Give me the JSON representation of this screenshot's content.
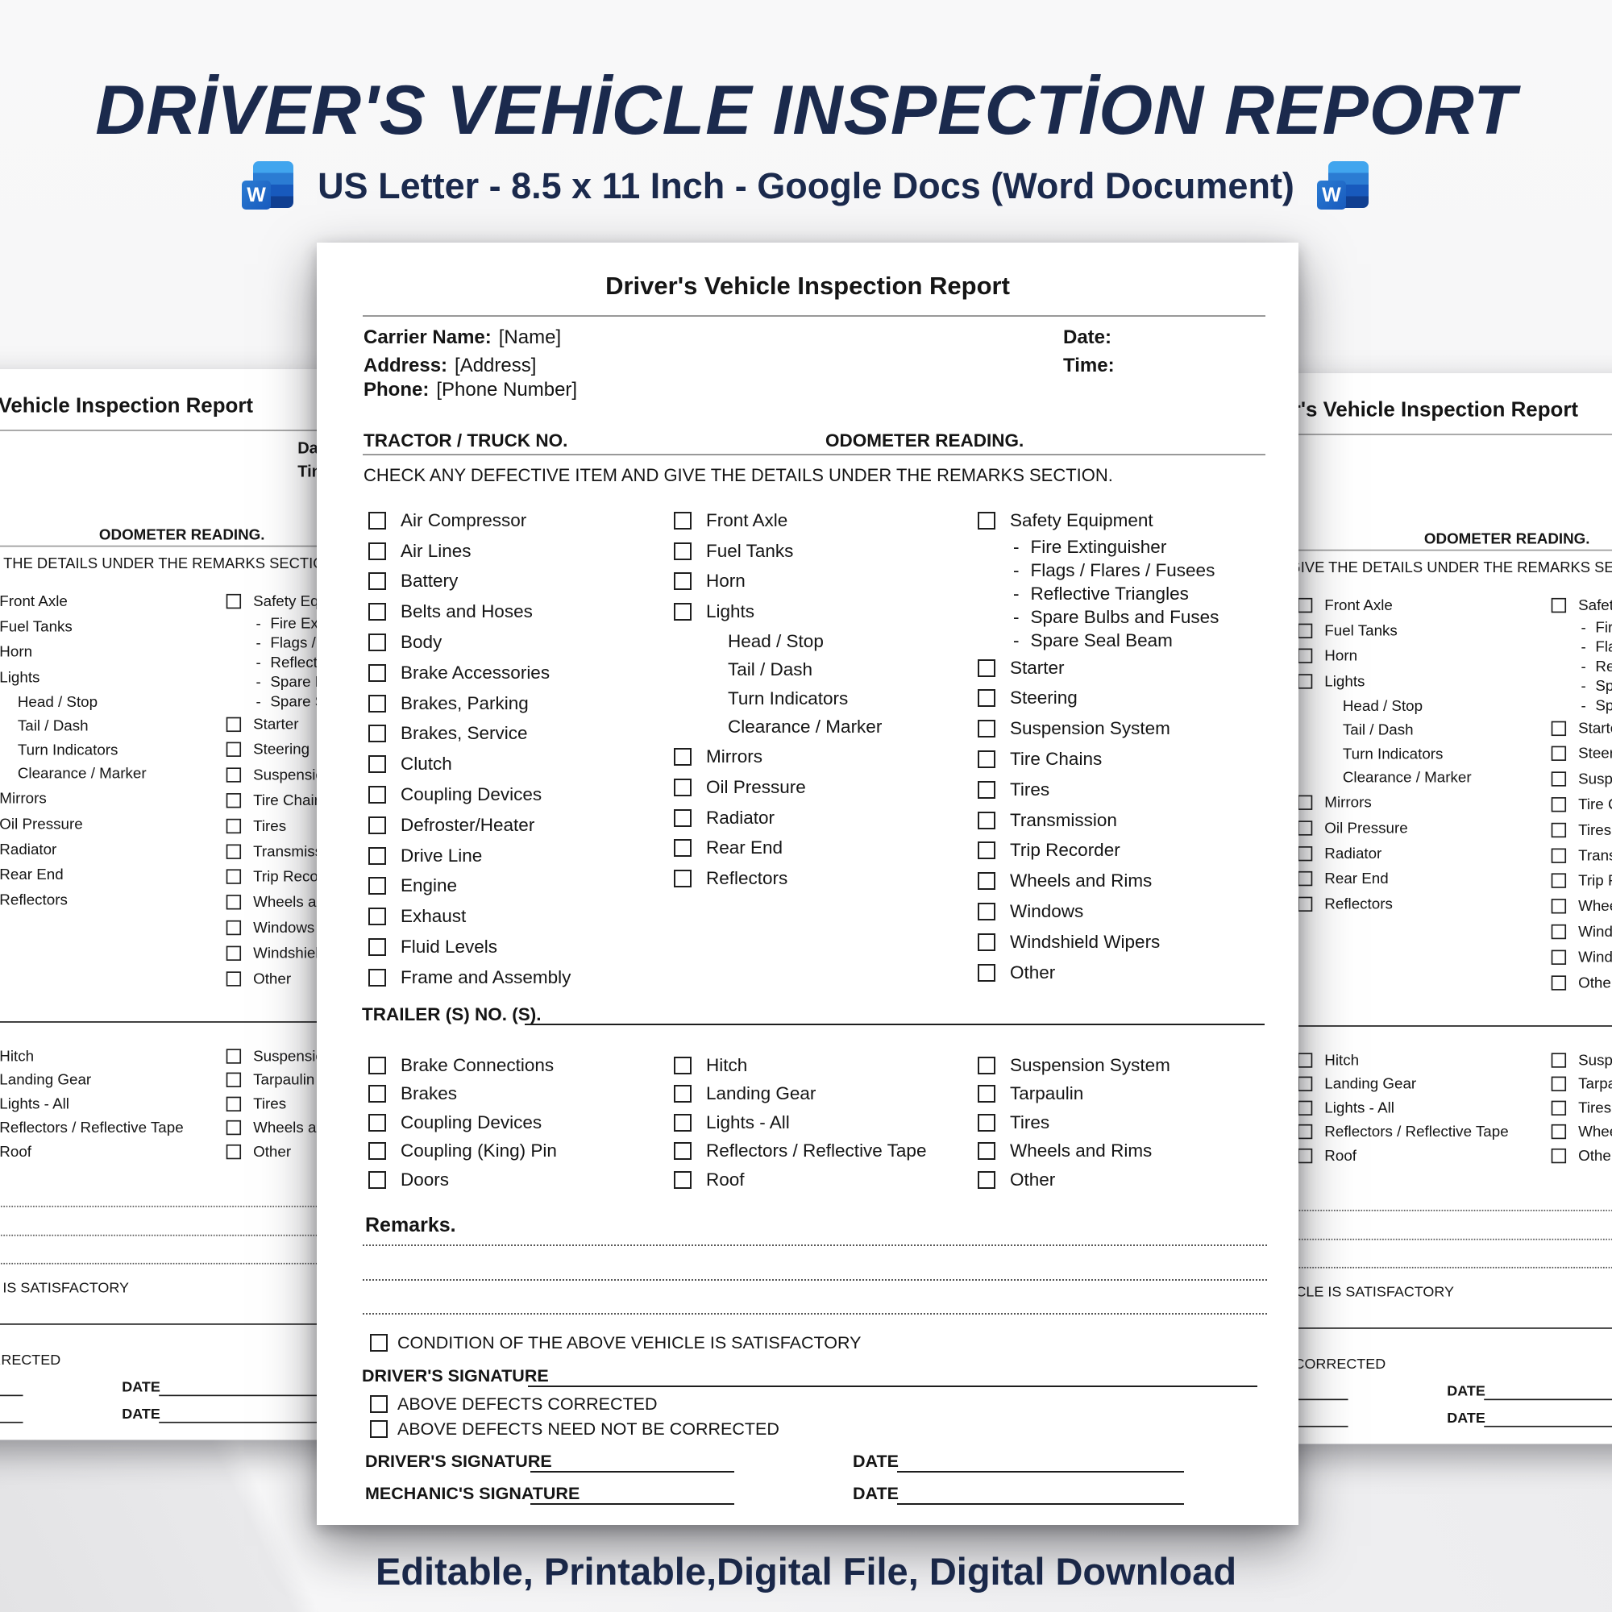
{
  "page": {
    "title": "DRİVER'S VEHİCLE INSPECTİON REPORT",
    "subtitle": "US Letter - 8.5 x 11 Inch - Google Docs (Word Document)",
    "footer_tagline": "Editable, Printable,Digital File, Digital Download",
    "accent_color": "#1b2a4d",
    "word_icon_letter": "W"
  },
  "form": {
    "title": "Driver's Vehicle Inspection Report",
    "carrier_fields": [
      {
        "label": "Carrier Name:",
        "value": "[Name]"
      },
      {
        "label": "Address:",
        "value": "[Address]"
      },
      {
        "label": "Phone:",
        "value": "[Phone Number]"
      }
    ],
    "datetime_fields": [
      {
        "label": "Date:"
      },
      {
        "label": "Time:"
      }
    ],
    "tractor_section_label": "TRACTOR / TRUCK NO.",
    "odometer_label": "ODOMETER READING.",
    "instruction": "CHECK ANY DEFECTIVE ITEM AND GIVE THE DETAILS UNDER THE REMARKS SECTION.",
    "dash_bullet": "-",
    "tractor_columns": [
      [
        {
          "type": "checkbox",
          "label": "Air Compressor"
        },
        {
          "type": "checkbox",
          "label": "Air Lines"
        },
        {
          "type": "checkbox",
          "label": "Battery"
        },
        {
          "type": "checkbox",
          "label": "Belts and Hoses"
        },
        {
          "type": "checkbox",
          "label": "Body"
        },
        {
          "type": "checkbox",
          "label": "Brake Accessories"
        },
        {
          "type": "checkbox",
          "label": "Brakes, Parking"
        },
        {
          "type": "checkbox",
          "label": "Brakes, Service"
        },
        {
          "type": "checkbox",
          "label": "Clutch"
        },
        {
          "type": "checkbox",
          "label": "Coupling Devices"
        },
        {
          "type": "checkbox",
          "label": "Defroster/Heater"
        },
        {
          "type": "checkbox",
          "label": "Drive Line"
        },
        {
          "type": "checkbox",
          "label": "Engine"
        },
        {
          "type": "checkbox",
          "label": "Exhaust"
        },
        {
          "type": "checkbox",
          "label": "Fluid Levels"
        },
        {
          "type": "checkbox",
          "label": "Frame and Assembly"
        }
      ],
      [
        {
          "type": "checkbox",
          "label": "Front Axle"
        },
        {
          "type": "checkbox",
          "label": "Fuel Tanks"
        },
        {
          "type": "checkbox",
          "label": "Horn"
        },
        {
          "type": "checkbox",
          "label": "Lights"
        },
        {
          "type": "sub",
          "label": "Head / Stop"
        },
        {
          "type": "sub",
          "label": "Tail / Dash"
        },
        {
          "type": "sub",
          "label": "Turn Indicators"
        },
        {
          "type": "sub",
          "label": "Clearance / Marker"
        },
        {
          "type": "checkbox",
          "label": "Mirrors"
        },
        {
          "type": "checkbox",
          "label": "Oil Pressure"
        },
        {
          "type": "checkbox",
          "label": "Radiator"
        },
        {
          "type": "checkbox",
          "label": "Rear End"
        },
        {
          "type": "checkbox",
          "label": "Reflectors"
        }
      ],
      [
        {
          "type": "checkbox",
          "label": "Safety Equipment"
        },
        {
          "type": "dash",
          "label": "Fire Extinguisher"
        },
        {
          "type": "dash",
          "label": "Flags / Flares / Fusees"
        },
        {
          "type": "dash",
          "label": "Reflective Triangles"
        },
        {
          "type": "dash",
          "label": "Spare Bulbs and Fuses"
        },
        {
          "type": "dash",
          "label": "Spare Seal Beam"
        },
        {
          "type": "checkbox",
          "label": "Starter"
        },
        {
          "type": "checkbox",
          "label": "Steering"
        },
        {
          "type": "checkbox",
          "label": "Suspension System"
        },
        {
          "type": "checkbox",
          "label": "Tire Chains"
        },
        {
          "type": "checkbox",
          "label": "Tires"
        },
        {
          "type": "checkbox",
          "label": "Transmission"
        },
        {
          "type": "checkbox",
          "label": "Trip Recorder"
        },
        {
          "type": "checkbox",
          "label": "Wheels and Rims"
        },
        {
          "type": "checkbox",
          "label": "Windows"
        },
        {
          "type": "checkbox",
          "label": "Windshield Wipers"
        },
        {
          "type": "checkbox",
          "label": "Other"
        }
      ]
    ],
    "trailer_section_label": "TRAILER (S) NO. (S).",
    "trailer_columns": [
      [
        {
          "type": "checkbox",
          "label": "Brake Connections"
        },
        {
          "type": "checkbox",
          "label": "Brakes"
        },
        {
          "type": "checkbox",
          "label": "Coupling Devices"
        },
        {
          "type": "checkbox",
          "label": "Coupling (King) Pin"
        },
        {
          "type": "checkbox",
          "label": "Doors"
        }
      ],
      [
        {
          "type": "checkbox",
          "label": "Hitch"
        },
        {
          "type": "checkbox",
          "label": "Landing Gear"
        },
        {
          "type": "checkbox",
          "label": "Lights - All"
        },
        {
          "type": "checkbox",
          "label": "Reflectors / Reflective Tape"
        },
        {
          "type": "checkbox",
          "label": "Roof"
        }
      ],
      [
        {
          "type": "checkbox",
          "label": "Suspension System"
        },
        {
          "type": "checkbox",
          "label": "Tarpaulin"
        },
        {
          "type": "checkbox",
          "label": "Tires"
        },
        {
          "type": "checkbox",
          "label": "Wheels and Rims"
        },
        {
          "type": "checkbox",
          "label": "Other"
        }
      ]
    ],
    "remarks_label": "Remarks.",
    "condition_label": "CONDITION OF THE ABOVE VEHICLE IS SATISFACTORY",
    "primary_signature_label": "DRIVER'S SIGNATURE",
    "defect_options": [
      {
        "label": "ABOVE DEFECTS CORRECTED"
      },
      {
        "label": "ABOVE DEFECTS  NEED NOT BE CORRECTED"
      }
    ],
    "signature_rows": [
      {
        "label": "DRIVER'S SIGNATURE",
        "date_label": "DATE"
      },
      {
        "label": "MECHANIC'S SIGNATURE",
        "date_label": "DATE"
      }
    ]
  }
}
